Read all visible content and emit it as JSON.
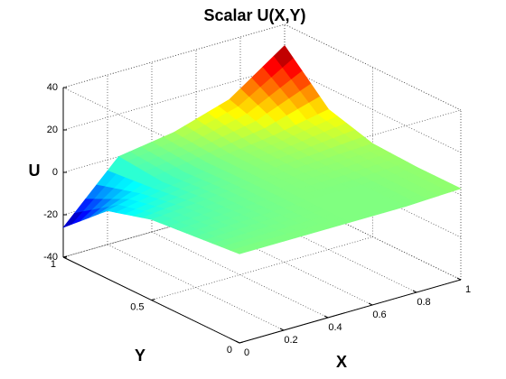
{
  "chart_data": {
    "type": "surface",
    "title": "Scalar U(X,Y)",
    "xlabel": "X",
    "ylabel": "Y",
    "zlabel": "U",
    "x": [
      0,
      0.25,
      0.5,
      0.75,
      1
    ],
    "y": [
      0,
      0.25,
      0.5,
      0.75,
      1
    ],
    "z": [
      [
        2,
        2,
        2,
        2,
        3
      ],
      [
        0,
        1,
        2,
        2,
        3
      ],
      [
        -2,
        0,
        2,
        3,
        4
      ],
      [
        -8,
        -2,
        2,
        5,
        10
      ],
      [
        -26,
        0,
        4,
        12,
        30
      ]
    ],
    "xlim": [
      0,
      1
    ],
    "ylim": [
      0,
      1
    ],
    "zlim": [
      -40,
      40
    ],
    "xticks": [
      0,
      0.2,
      0.4,
      0.6,
      0.8,
      1
    ],
    "yticks": [
      0,
      0.5,
      1
    ],
    "zticks": [
      -40,
      -20,
      0,
      20,
      40
    ],
    "grid": true,
    "colormap": "jet"
  }
}
